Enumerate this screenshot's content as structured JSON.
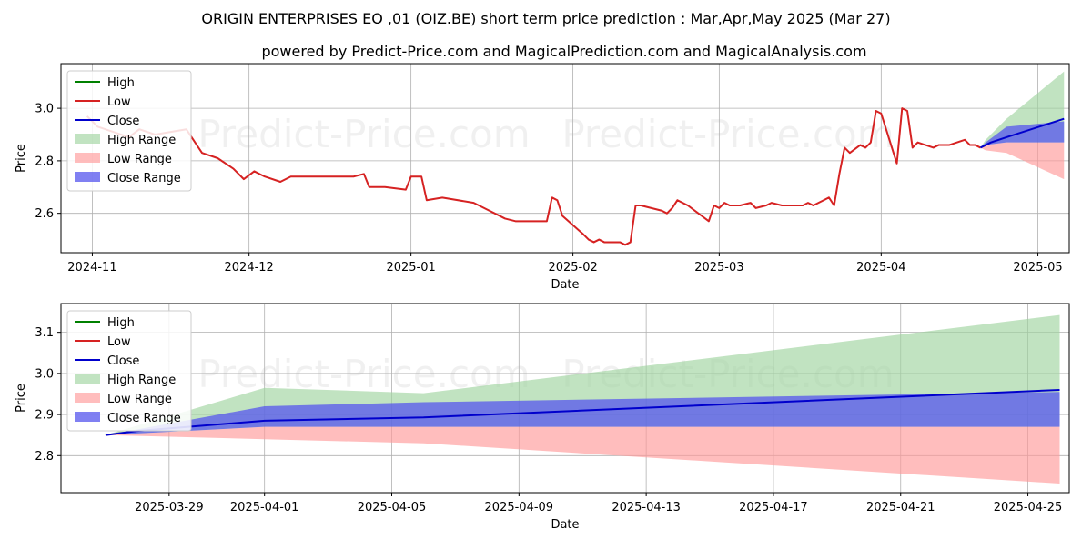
{
  "title": "ORIGIN ENTERPRISES EO ,01 (OIZ.BE) short term price prediction : Mar,Apr,May 2025 (Mar 27)",
  "subtitle": "powered by Predict-Price.com and MagicalPrediction.com and MagicalAnalysis.com",
  "watermark": "Predict-Price.com",
  "colors": {
    "high": "#008000",
    "low": "#d62222",
    "close": "#0000cc",
    "high_range": "#9fd49f",
    "low_range": "#ff9a9a",
    "close_range": "#5555ee",
    "grid": "#b0b0b0"
  },
  "chart_data": [
    {
      "type": "line",
      "xlabel": "Date",
      "ylabel": "Price",
      "xlim": [
        "2024-10-26",
        "2025-05-07"
      ],
      "ylim": [
        2.45,
        3.17
      ],
      "grid": true,
      "legend_placement": "top-left",
      "x_ticks": [
        "2024-11",
        "2024-12",
        "2025-01",
        "2025-02",
        "2025-03",
        "2025-04",
        "2025-05"
      ],
      "x_tick_dates": [
        "2024-11-01",
        "2024-12-01",
        "2025-01-01",
        "2025-02-01",
        "2025-03-01",
        "2025-04-01",
        "2025-05-01"
      ],
      "y_ticks": [
        2.6,
        2.8,
        3.0
      ],
      "legend": [
        "High",
        "Low",
        "Close",
        "High Range",
        "Low Range",
        "Close Range"
      ],
      "series": [
        {
          "name": "Low",
          "points": [
            [
              "2024-10-31",
              2.97
            ],
            [
              "2024-11-02",
              2.93
            ],
            [
              "2024-11-05",
              2.91
            ],
            [
              "2024-11-08",
              2.89
            ],
            [
              "2024-11-10",
              2.92
            ],
            [
              "2024-11-13",
              2.9
            ],
            [
              "2024-11-19",
              2.92
            ],
            [
              "2024-11-21",
              2.86
            ],
            [
              "2024-11-22",
              2.83
            ],
            [
              "2024-11-25",
              2.81
            ],
            [
              "2024-11-28",
              2.77
            ],
            [
              "2024-11-30",
              2.73
            ],
            [
              "2024-12-02",
              2.76
            ],
            [
              "2024-12-04",
              2.74
            ],
            [
              "2024-12-07",
              2.72
            ],
            [
              "2024-12-09",
              2.74
            ],
            [
              "2024-12-12",
              2.74
            ],
            [
              "2024-12-16",
              2.74
            ],
            [
              "2024-12-21",
              2.74
            ],
            [
              "2024-12-23",
              2.75
            ],
            [
              "2024-12-24",
              2.7
            ],
            [
              "2024-12-27",
              2.7
            ],
            [
              "2024-12-31",
              2.69
            ],
            [
              "2025-01-01",
              2.74
            ],
            [
              "2025-01-02",
              2.74
            ],
            [
              "2025-01-03",
              2.74
            ],
            [
              "2025-01-04",
              2.65
            ],
            [
              "2025-01-07",
              2.66
            ],
            [
              "2025-01-13",
              2.64
            ],
            [
              "2025-01-16",
              2.61
            ],
            [
              "2025-01-19",
              2.58
            ],
            [
              "2025-01-21",
              2.57
            ],
            [
              "2025-01-26",
              2.57
            ],
            [
              "2025-01-27",
              2.57
            ],
            [
              "2025-01-28",
              2.66
            ],
            [
              "2025-01-29",
              2.65
            ],
            [
              "2025-01-30",
              2.59
            ],
            [
              "2025-02-03",
              2.52
            ],
            [
              "2025-02-04",
              2.5
            ],
            [
              "2025-02-05",
              2.49
            ],
            [
              "2025-02-06",
              2.5
            ],
            [
              "2025-02-07",
              2.49
            ],
            [
              "2025-02-10",
              2.49
            ],
            [
              "2025-02-11",
              2.48
            ],
            [
              "2025-02-12",
              2.49
            ],
            [
              "2025-02-13",
              2.63
            ],
            [
              "2025-02-14",
              2.63
            ],
            [
              "2025-02-18",
              2.61
            ],
            [
              "2025-02-19",
              2.6
            ],
            [
              "2025-02-20",
              2.62
            ],
            [
              "2025-02-21",
              2.65
            ],
            [
              "2025-02-22",
              2.64
            ],
            [
              "2025-02-23",
              2.63
            ],
            [
              "2025-02-27",
              2.57
            ],
            [
              "2025-02-28",
              2.63
            ],
            [
              "2025-03-01",
              2.62
            ],
            [
              "2025-03-02",
              2.64
            ],
            [
              "2025-03-03",
              2.63
            ],
            [
              "2025-03-05",
              2.63
            ],
            [
              "2025-03-07",
              2.64
            ],
            [
              "2025-03-08",
              2.62
            ],
            [
              "2025-03-10",
              2.63
            ],
            [
              "2025-03-11",
              2.64
            ],
            [
              "2025-03-13",
              2.63
            ],
            [
              "2025-03-16",
              2.63
            ],
            [
              "2025-03-17",
              2.63
            ],
            [
              "2025-03-18",
              2.64
            ],
            [
              "2025-03-19",
              2.63
            ],
            [
              "2025-03-21",
              2.65
            ],
            [
              "2025-03-22",
              2.66
            ],
            [
              "2025-03-23",
              2.63
            ],
            [
              "2025-03-24",
              2.75
            ],
            [
              "2025-03-25",
              2.85
            ],
            [
              "2025-03-26",
              2.83
            ],
            [
              "2025-03-28",
              2.86
            ],
            [
              "2025-03-29",
              2.85
            ],
            [
              "2025-03-30",
              2.87
            ],
            [
              "2025-03-31",
              2.99
            ],
            [
              "2025-04-01",
              2.98
            ],
            [
              "2025-04-04",
              2.79
            ],
            [
              "2025-04-05",
              3.0
            ],
            [
              "2025-04-06",
              2.99
            ],
            [
              "2025-04-07",
              2.85
            ],
            [
              "2025-04-08",
              2.87
            ],
            [
              "2025-04-11",
              2.85
            ],
            [
              "2025-04-12",
              2.86
            ],
            [
              "2025-04-14",
              2.86
            ],
            [
              "2025-04-17",
              2.88
            ],
            [
              "2025-04-18",
              2.86
            ],
            [
              "2025-04-19",
              2.86
            ],
            [
              "2025-04-20",
              2.85
            ]
          ]
        },
        {
          "name": "Close",
          "points": [
            [
              "2025-04-20",
              2.85
            ],
            [
              "2025-04-21",
              2.86
            ],
            [
              "2025-04-22",
              2.87
            ],
            [
              "2025-04-25",
              2.89
            ],
            [
              "2025-05-06",
              2.96
            ]
          ]
        }
      ],
      "ranges": {
        "dates": [
          "2025-04-20",
          "2025-04-21",
          "2025-04-25",
          "2025-05-06"
        ],
        "high_range": {
          "upper": [
            2.85,
            2.88,
            2.96,
            3.14
          ],
          "lower": [
            2.85,
            2.86,
            2.87,
            2.87
          ]
        },
        "low_range": {
          "upper": [
            2.85,
            2.86,
            2.87,
            2.87
          ],
          "lower": [
            2.85,
            2.84,
            2.83,
            2.73
          ]
        },
        "close_range": {
          "upper": [
            2.85,
            2.87,
            2.93,
            2.95
          ],
          "lower": [
            2.85,
            2.86,
            2.87,
            2.87
          ]
        }
      }
    },
    {
      "type": "line",
      "xlabel": "Date",
      "ylabel": "Price",
      "xlim": [
        "2025-03-25.6",
        "2025-04-26.3"
      ],
      "ylim": [
        2.71,
        3.17
      ],
      "grid": true,
      "legend_placement": "top-left",
      "x_ticks": [
        "2025-03-29",
        "2025-04-01",
        "2025-04-05",
        "2025-04-09",
        "2025-04-13",
        "2025-04-17",
        "2025-04-21",
        "2025-04-25"
      ],
      "y_ticks": [
        2.8,
        2.9,
        3.0,
        3.1
      ],
      "legend": [
        "High",
        "Low",
        "Close",
        "High Range",
        "Low Range",
        "Close Range"
      ],
      "series": [
        {
          "name": "Close",
          "points": [
            [
              "2025-03-27",
              2.85
            ],
            [
              "2025-03-28",
              2.86
            ],
            [
              "2025-04-01",
              2.885
            ],
            [
              "2025-04-06",
              2.893
            ],
            [
              "2025-04-26",
              2.96
            ]
          ]
        }
      ],
      "ranges": {
        "dates": [
          "2025-03-27",
          "2025-04-01",
          "2025-04-06",
          "2025-04-26"
        ],
        "high_range": {
          "upper": [
            2.85,
            2.965,
            2.952,
            3.142
          ],
          "lower": [
            2.85,
            2.87,
            2.87,
            2.87
          ]
        },
        "low_range": {
          "upper": [
            2.85,
            2.87,
            2.87,
            2.87
          ],
          "lower": [
            2.85,
            2.84,
            2.83,
            2.732
          ]
        },
        "close_range": {
          "upper": [
            2.85,
            2.92,
            2.93,
            2.955
          ],
          "lower": [
            2.85,
            2.87,
            2.87,
            2.87
          ]
        }
      }
    }
  ]
}
